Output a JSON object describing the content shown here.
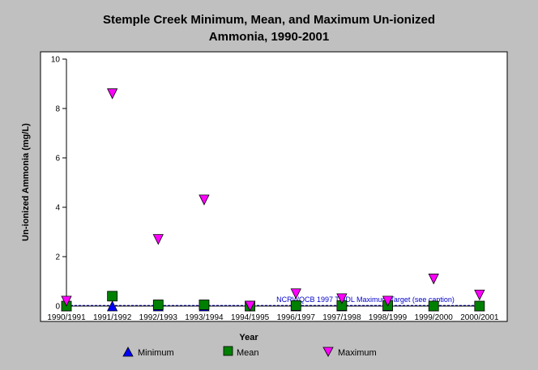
{
  "chart_data": {
    "type": "scatter",
    "title_line1": "Stemple Creek Minimum, Mean, and Maximum Un-ionized",
    "title_line2": "Ammonia, 1990-2001",
    "xlabel": "Year",
    "ylabel": "Un-ionized Ammonia (mg/L)",
    "ylim": [
      0,
      10
    ],
    "yticks": [
      "0",
      "2",
      "4",
      "6",
      "8",
      "10"
    ],
    "categories": [
      "1990/1991",
      "1991/1992",
      "1992/1993",
      "1993/1994",
      "1994/1995",
      "1996/1997",
      "1997/1998",
      "1998/1999",
      "1999/2000",
      "2000/2001"
    ],
    "series": [
      {
        "name": "Minimum",
        "marker": "triangle-up",
        "color": "#0000ff",
        "values": [
          0.0,
          0.0,
          0.0,
          0.0,
          0.0,
          0.0,
          0.0,
          0.0,
          0.0,
          0.0
        ]
      },
      {
        "name": "Mean",
        "marker": "square",
        "color": "#008000",
        "values": [
          0.0,
          0.4,
          0.05,
          0.05,
          0.0,
          0.02,
          0.02,
          0.02,
          0.0,
          0.0
        ]
      },
      {
        "name": "Maximum",
        "marker": "triangle-down",
        "color": "#ff00ff",
        "values": [
          0.2,
          8.6,
          2.7,
          4.3,
          0.0,
          0.5,
          0.3,
          0.2,
          1.1,
          0.45
        ]
      }
    ],
    "target": {
      "value": 0.025,
      "label": "NCRWQCB 1997 TMDL Maximum Target (see caption)",
      "color": "#0000cc"
    },
    "grid": false,
    "legend_position": "bottom"
  }
}
